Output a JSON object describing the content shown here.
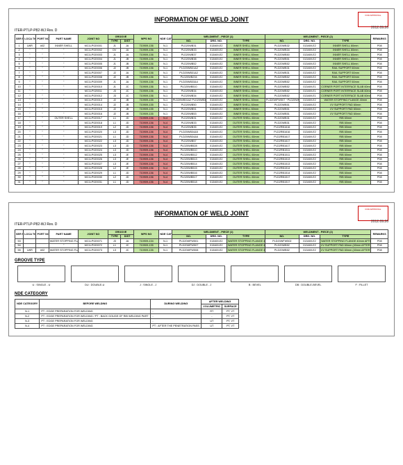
{
  "document": {
    "id": "ITER-PTLP-P82-WJ Rev. D",
    "title": "INFORMATION OF WELD JOINT",
    "date": "2012.09.26",
    "approval": "FOR APPROVAL"
  },
  "colors": {
    "green": "#c5e7a5",
    "red": "#e68f8f",
    "border": "#444"
  },
  "header": {
    "ser": "SER NO.",
    "loca": "LOCA TION",
    "port": "PORT NO.",
    "partname": "PART NAME",
    "jointno": "JOINT NO",
    "groove": "GROOVE",
    "grooveType": "TYPE",
    "grooveDist": "DIST",
    "wps": "WPS NO",
    "nde": "NDE CAT",
    "piece1": "WELDMENT - PIECE (1)",
    "piece2": "WELDMENT - PIECE (2)",
    "type": "TYPE",
    "no": "NO.",
    "drg": "DRG. NO.",
    "remarks": "REMARKS"
  },
  "rows1": [
    {
      "ser": "1",
      "loca": "LWR",
      "port": "#02",
      "part": "INNER SHELL",
      "joint": "MC1LP020001",
      "gt": "J1",
      "gd": "JA",
      "wps": "710909-136",
      "nde": "N-1",
      "p1t": "PLD20WB31",
      "p1n": "013469-E2",
      "p1d": "INNER SHELL 60mm",
      "p2t": "PLD20WB32",
      "p2n": "013469-E2",
      "p2d": "INNER SHELL 60mm",
      "rem": "P08"
    },
    {
      "ser": "2",
      "loca": "\"",
      "port": "\"",
      "part": "\"",
      "joint": "MC1LP020002",
      "gt": "DV",
      "gd": "JA",
      "wps": "710909-136",
      "nde": "N-1",
      "p1t": "PLD20WB33",
      "p1n": "013469-E2",
      "p1d": "INNER SHELL 60mm",
      "p2t": "PLD20WB34",
      "p2n": "013469-E2",
      "p2d": "INNER SHELL 60mm",
      "rem": "P08"
    },
    {
      "ser": "3",
      "loca": "\"",
      "port": "\"",
      "part": "\"",
      "joint": "MC1LP020003",
      "gt": "J1",
      "gd": "JA",
      "wps": "710909-136",
      "nde": "N-1",
      "p1t": "PLD20WB37",
      "p1n": "013469-E2",
      "p1d": "INNER SHELL 60mm",
      "p2t": "PLD20WB50",
      "p2n": "013469-E2",
      "p2d": "INNER SHELL 60mm",
      "rem": "P08"
    },
    {
      "ser": "4",
      "loca": "\"",
      "port": "\"",
      "part": "\"",
      "joint": "MC1LP020004",
      "gt": "J1",
      "gd": "JB",
      "wps": "710909-136",
      "nde": "N-1",
      "p1t": "PLD20WB38",
      "p1n": "013469-E2",
      "p1d": "INNER SHELL 60mm",
      "p2t": "PLD20WB51",
      "p2n": "013469-E2",
      "p2d": "INNER SHELL 60mm",
      "rem": "P08"
    },
    {
      "ser": "5",
      "loca": "\"",
      "port": "\"",
      "part": "\"",
      "joint": "MC1LP020005",
      "gt": "J1",
      "gd": "JB",
      "wps": "710909-136",
      "nde": "N-1",
      "p1t": "PLD20WB52",
      "p1n": "013469-E2",
      "p1d": "INNER SHELL 60mm",
      "p2t": "PLD20WB52",
      "p2n": "013469-E2",
      "p2d": "INNER SHELL 60mm",
      "rem": "P08"
    },
    {
      "ser": "6",
      "loca": "\"",
      "port": "\"",
      "part": "\"",
      "joint": "MC1LP020006",
      "gt": "J2",
      "gd": "JB",
      "wps": "710909-136",
      "nde": "N-1",
      "p1t": "PLD20WB31&2",
      "p1n": "013469-E2",
      "p1d": "INNER SHELL 60mm",
      "p2t": "PLD20WB31",
      "p2n": "013469-E2",
      "p2d": "RAIL SUPPORT 60mm",
      "rem": "P08"
    },
    {
      "ser": "7",
      "loca": "\"",
      "port": "\"",
      "part": "\"",
      "joint": "MC1LP020007",
      "gt": "J2",
      "gd": "JA",
      "wps": "710909-136",
      "nde": "N-1",
      "p1t": "PLD20WB31&2",
      "p1n": "013469-E2",
      "p1d": "INNER SHELL 60mm",
      "p2t": "PLD20WB31",
      "p2n": "013469-E2",
      "p2d": "RAIL SUPPORT 60mm",
      "rem": "P08"
    },
    {
      "ser": "8",
      "loca": "\"",
      "port": "\"",
      "part": "\"",
      "joint": "MC1LP020008",
      "gt": "J2",
      "gd": "JB",
      "wps": "710909-136",
      "nde": "N-1",
      "p1t": "PLD20WB234",
      "p1n": "013469-E2",
      "p1d": "INNER SHELL 60mm",
      "p2t": "PLD20WB52",
      "p2n": "013469-E2",
      "p2d": "RAIL SUPPORT 60mm",
      "rem": "P08"
    },
    {
      "ser": "9",
      "loca": "\"",
      "port": "\"",
      "part": "\"",
      "joint": "MC1LP020009",
      "gt": "J1",
      "gd": "JA",
      "wps": "710909-136",
      "nde": "N-1",
      "p1t": "PLD20WB33&4",
      "p1n": "013469-E2",
      "p1d": "INNER SHELL 60mm",
      "p2t": "PLD20WB52",
      "p2n": "013469-E2",
      "p2d": "RAIL SUPPORT 60mm",
      "rem": "P08"
    },
    {
      "ser": "10",
      "loca": "\"",
      "port": "\"",
      "part": "\"",
      "joint": "MC1LP020010",
      "gt": "J1",
      "gd": "JC",
      "wps": "710909-136",
      "nde": "N-1",
      "p1t": "PLD20WB510",
      "p1n": "013469-E2",
      "p1d": "INNER SHELL 60mm",
      "p2t": "PLD20WB52",
      "p2n": "013469-E1",
      "p2d": "CORNER PORT INTERFACE SLAB 60mm",
      "rem": "P08"
    },
    {
      "ser": "11",
      "loca": "\"",
      "port": "\"",
      "part": "\"",
      "joint": "MC1LP020011",
      "gt": "J3",
      "gd": "JC",
      "wps": "710909-136",
      "nde": "N-1",
      "p1t": "PLD20WB34",
      "p1n": "013469-E2",
      "p1d": "INNER SHELL 60mm",
      "p2t": "PLD20WB52",
      "p2n": "013469-E1",
      "p2d": "CORNER PORT INTERFACE SLAB 60mm",
      "rem": "P08"
    },
    {
      "ser": "12",
      "loca": "\"",
      "port": "\"",
      "part": "\"",
      "joint": "MC1LP020012",
      "gt": "J3",
      "gd": "JC",
      "wps": "710909-136",
      "nde": "N-1",
      "p1t": "PLD20WB34",
      "p1n": "013469-E2",
      "p1d": "INNER SHELL 60mm",
      "p2t": "PLD20WB52",
      "p2n": "013469-E1",
      "p2d": "CORNER PORT INTERFACE SLAB 60mm",
      "rem": "P08"
    },
    {
      "ser": "13",
      "loca": "\"",
      "port": "\"",
      "part": "\"",
      "joint": "MC1LP020013",
      "gt": "J2",
      "gd": "JB",
      "wps": "710909-135",
      "nde": "N-1",
      "p1t": "PLD20WB31&2 PLD20WB33&4",
      "p1n": "013469-E2",
      "p1d": "INNER SHELL 60mm",
      "p2t": "PLD20WFW507 ~PLD20WFW516",
      "p2n": "013469-E2",
      "p2d": "WATER STOPPING FLANGE 40mm",
      "rem": "P08"
    },
    {
      "ser": "14",
      "loca": "\"",
      "port": "\"",
      "part": "\"",
      "joint": "MC1LP020014",
      "gt": "J2",
      "gd": "JB",
      "wps": "710909-135",
      "nde": "N-1",
      "p1t": "PLD20WB50",
      "p1n": "013469-E2",
      "p1d": "INNER SHELL 60mm",
      "p2t": "PLD20WB51",
      "p2n": "013469-E2",
      "p2d": "I/V SUPPORT PAD 60mm",
      "rem": "P08"
    },
    {
      "ser": "15",
      "loca": "\"",
      "port": "\"",
      "part": "\"",
      "joint": "MC1LP020015",
      "gt": "J2",
      "gd": "JB",
      "wps": "710909-135",
      "nde": "N-1",
      "p1t": "PLD20WB51",
      "p1n": "013469-E2",
      "p1d": "INNER SHELL 60mm",
      "p2t": "PLD20WB51",
      "p2n": "013469-E2",
      "p2d": "I/V SUPPORT PAD 60mm",
      "rem": "P08"
    },
    {
      "ser": "16",
      "loca": "\"",
      "port": "\"",
      "part": "\"",
      "joint": "MC1LP020016",
      "gt": "J2",
      "gd": "JB",
      "wps": "710909-135",
      "nde": "N-1",
      "p1t": "PLD20WB53",
      "p1n": "013469-E2",
      "p1d": "INNER SHELL 60mm",
      "p2t": "PLD20WB51",
      "p2n": "013469-E2",
      "p2d": "I/V SUPPORT PAD 60mm",
      "rem": "P08"
    },
    {
      "ser": "17",
      "loca": "\"",
      "port": "\"",
      "part": "OUTER SHELL",
      "joint": "MC1LP020017",
      "gt": "L1",
      "gd": "JD",
      "wps": "710909-136",
      "nde": "N-4",
      "p1t": "PLD20WB31",
      "p1n": "013469-E2",
      "p1d": "OUTER SHELL 60mm",
      "p2t": "PLD20WB31",
      "p2n": "013469-E2",
      "p2d": "RIB 60mm",
      "rem": "P08"
    },
    {
      "ser": "18",
      "loca": "\"",
      "port": "\"",
      "part": "\"",
      "joint": "MC1LP020018",
      "gt": "L1",
      "gd": "JD",
      "wps": "710909-136",
      "nde": "N-4",
      "p1t": "PLD20WB33",
      "p1n": "013469-E2",
      "p1d": "OUTER SHELL 60mm",
      "p2t": "PLD20WB31",
      "p2n": "013469-E2",
      "p2d": "RIB 60mm",
      "rem": "P08"
    },
    {
      "ser": "19",
      "loca": "\"",
      "port": "\"",
      "part": "\"",
      "joint": "MC1LP020019",
      "gt": "L2",
      "gd": "JD",
      "wps": "710909-136",
      "nde": "N-4",
      "p1t": "PLD20WB35",
      "p1n": "013469-E2",
      "p1d": "OUTER SHELL 60mm",
      "p2t": "PLD2RB1616",
      "p2n": "013469-E2",
      "p2d": "RIB 60mm",
      "rem": "P08"
    },
    {
      "ser": "20",
      "loca": "\"",
      "port": "\"",
      "part": "\"",
      "joint": "MC1LP020020",
      "gt": "L3",
      "gd": "JD",
      "wps": "710909-136",
      "nde": "N-4",
      "p1t": "PLD20WB34&5",
      "p1n": "013469-E2",
      "p1d": "OUTER SHELL 60mm",
      "p2t": "PLD2RB1616",
      "p2n": "013469-E2",
      "p2d": "RIB 60mm",
      "rem": "P08"
    },
    {
      "ser": "21",
      "loca": "\"",
      "port": "\"",
      "part": "\"",
      "joint": "MC1LP020021",
      "gt": "L1",
      "gd": "JD",
      "wps": "710909-136",
      "nde": "N-4",
      "p1t": "PLD20WB34&6",
      "p1n": "013469-E2",
      "p1d": "OUTER SHELL 60mm",
      "p2t": "PLD2RB1617",
      "p2n": "013469-E2",
      "p2d": "RIB 60mm",
      "rem": "P08"
    },
    {
      "ser": "22",
      "loca": "\"",
      "port": "\"",
      "part": "\"",
      "joint": "MC1LP020022",
      "gt": "L3",
      "gd": "JD",
      "wps": "710909-136",
      "nde": "N-4",
      "p1t": "PLD20WB57",
      "p1n": "013469-E2",
      "p1d": "OUTER SHELL 60mm",
      "p2t": "PLD2RB1617",
      "p2n": "013469-E2",
      "p2d": "RIB 60mm",
      "rem": "P08"
    },
    {
      "ser": "23",
      "loca": "\"",
      "port": "\"",
      "part": "\"",
      "joint": "MC1LP020023",
      "gt": "L3",
      "gd": "JD",
      "wps": "710909-136",
      "nde": "N-4",
      "p1t": "PLD20WB528",
      "p1n": "013469-E2",
      "p1d": "OUTER SHELL 60mm",
      "p2t": "PLD2RB1617",
      "p2n": "013469-E2",
      "p2d": "RIB 60mm",
      "rem": "P08"
    },
    {
      "ser": "24",
      "loca": "\"",
      "port": "\"",
      "part": "\"",
      "joint": "MC1LP020024",
      "gt": "L3",
      "gd": "JD",
      "wps": "710909-136",
      "nde": "N-4",
      "p1t": "PLD20WB510",
      "p1n": "013469-E2",
      "p1d": "OUTER SHELL 60mm",
      "p2t": "PLD2RB1511",
      "p2n": "013469-E2",
      "p2d": "RIB 60mm",
      "rem": "P08"
    },
    {
      "ser": "25",
      "loca": "\"",
      "port": "\"",
      "part": "\"",
      "joint": "MC1LP020025",
      "gt": "L3",
      "gd": "JE",
      "wps": "710909-136",
      "nde": "N-4",
      "p1t": "PLD20WB512",
      "p1n": "013469-E2",
      "p1d": "OUTER SHELL 60mm",
      "p2t": "PLD2RB1511",
      "p2n": "013469-E2",
      "p2d": "RIB 60mm",
      "rem": "P08"
    },
    {
      "ser": "26",
      "loca": "\"",
      "port": "\"",
      "part": "\"",
      "joint": "MC1LP020026",
      "gt": "L3",
      "gd": "JE",
      "wps": "710909-136",
      "nde": "N-4",
      "p1t": "PLD20WB513",
      "p1n": "013469-E2",
      "p1d": "OUTER SHELL 60mm",
      "p2t": "PLD2RB1513",
      "p2n": "013469-E2",
      "p2d": "RIB 60mm",
      "rem": "P08"
    },
    {
      "ser": "27",
      "loca": "\"",
      "port": "\"",
      "part": "\"",
      "joint": "MC1LP020027",
      "gt": "L3",
      "gd": "JE",
      "wps": "710909-136",
      "nde": "N-4",
      "p1t": "PLD20WB514",
      "p1n": "013469-E2",
      "p1d": "OUTER SHELL 60mm",
      "p2t": "PLD2RB1513",
      "p2n": "013469-E2",
      "p2d": "RIB 60mm",
      "rem": "P08"
    },
    {
      "ser": "28",
      "loca": "\"",
      "port": "\"",
      "part": "\"",
      "joint": "MC1LP020028",
      "gt": "L2",
      "gd": "JE",
      "wps": "710909-136",
      "nde": "N-4",
      "p1t": "PLD20WB515",
      "p1n": "013469-E2",
      "p1d": "OUTER SHELL 60mm",
      "p2t": "PLD2RB1514",
      "p2n": "013469-E2",
      "p2d": "RIB 60mm",
      "rem": "P08"
    },
    {
      "ser": "29",
      "loca": "\"",
      "port": "\"",
      "part": "\"",
      "joint": "MC1LP020029",
      "gt": "L1",
      "gd": "JD",
      "wps": "710909-136",
      "nde": "N-4",
      "p1t": "PLD20WB516",
      "p1n": "013469-E2",
      "p1d": "OUTER SHELL 60mm",
      "p2t": "PLD2RB1514",
      "p2n": "013469-E2",
      "p2d": "RIB 60mm",
      "rem": "P08"
    },
    {
      "ser": "30",
      "loca": "\"",
      "port": "\"",
      "part": "\"",
      "joint": "MC1LP020030",
      "gt": "L2",
      "gd": "JD",
      "wps": "710909-136",
      "nde": "N-4",
      "p1t": "PLD20WB517",
      "p1n": "013469-E2",
      "p1d": "OUTER SHELL 60mm",
      "p2t": "PLD2RB1517",
      "p2n": "013469-E2",
      "p2d": "RIB 60mm",
      "rem": "P08"
    },
    {
      "ser": "31",
      "loca": "\"",
      "port": "\"",
      "part": "\"",
      "joint": "MC1LP020031",
      "gt": "L1",
      "gd": "JD",
      "wps": "710909-136",
      "nde": "N-4",
      "p1t": "PLD20WB518",
      "p1n": "013469-E2",
      "p1d": "OUTER SHELL 60mm",
      "p2t": "PLD2RB1517",
      "p2n": "013469-E2",
      "p2d": "RIB 60mm",
      "rem": "P08"
    }
  ],
  "rows2": [
    {
      "ser": "53",
      "loca": "",
      "port": "",
      "part": "WATER STOPPING FLANGE",
      "joint": "MC1LP020071",
      "gt": "J3",
      "gd": "JA",
      "wps": "710909-134",
      "nde": "N-1",
      "p1t": "PLD20WFW501",
      "p1n": "013469-E2",
      "p1d": "WATER STOPPING FLANGE 40mm AFTER M/C",
      "p2t": "PLD20WFW502",
      "p2n": "013469-E2",
      "p2d": "WATER STOPPING FLANGE 40mm AFTER M/C",
      "rem": "P08"
    },
    {
      "ser": "54",
      "loca": "",
      "port": "",
      "part": "\"",
      "joint": "MC1LP020072",
      "gt": "L1",
      "gd": "JC",
      "wps": "710909-135",
      "nde": "N-1",
      "p1t": "PLD20WFW507",
      "p1n": "013469-E2",
      "p1d": "WATER STOPPING FLANGE 40mm AFTER M/C",
      "p2t": "PLD20WB52",
      "p2n": "013469-E2",
      "p2d": "I/V SUPPORT PAD 60mm (40mm AFTER M/C)",
      "rem": "P08"
    },
    {
      "ser": "55",
      "loca": "LWR",
      "port": "#02",
      "part": "WATER STOPPING FLANGE",
      "joint": "MC1LP020073",
      "gt": "L3",
      "gd": "JC",
      "wps": "710909-135",
      "nde": "N-1",
      "p1t": "PLD20WFW508",
      "p1n": "013469-E2",
      "p1d": "WATER STOPPING FLANGE 40mm AFTER M/C",
      "p2t": "PLD20WB52",
      "p2n": "013469-E2",
      "p2d": "I/V SUPPORT PAD 60mm (40mm AFTER M/C)",
      "rem": "P08"
    }
  ],
  "groove": {
    "heading": "GROOVE TYPE",
    "items": [
      {
        "code": "U",
        "label": "U : SINGLE - U"
      },
      {
        "code": "DU",
        "label": "DU : DOUBLE-U"
      },
      {
        "code": "J",
        "label": "J : SINGLE - J"
      },
      {
        "code": "DJ",
        "label": "DJ : DOUBLE - J"
      },
      {
        "code": "B",
        "label": "B : BEVEL"
      },
      {
        "code": "DB",
        "label": "DB : DOUBLE-BEVEL"
      },
      {
        "code": "F",
        "label": "F : FILLET"
      }
    ]
  },
  "nde": {
    "heading": "NDE CATEGORY",
    "hdr": {
      "cat": "NDE CATEGORY",
      "before": "BEFORE WELDING",
      "during": "DURING WELDING",
      "after": "AFTER WELDING",
      "vol": "VOLUMETRIC",
      "surf": "SURFACE"
    },
    "rows": [
      {
        "cat": "N-1",
        "before": "PT : EDGE PREPARATION FOR WELDING",
        "during": "-",
        "vol": "RT",
        "surf": "PT, VT"
      },
      {
        "cat": "N-2",
        "before": "PT : EDGE PREPARATION FOR WELDING / PT : BACK GOUGE OF RIB WELDING PART",
        "during": "-",
        "vol": "-",
        "surf": "PT, VT"
      },
      {
        "cat": "N-3",
        "before": "PT : EDGE PREPARATION FOR WELDING",
        "during": "-",
        "vol": "UT",
        "surf": "PT, VT"
      },
      {
        "cat": "N-4",
        "before": "PT : EDGE PREPARATION FOR WELDING",
        "during": "PT : AFTER THE PENETRATION PASS",
        "vol": "UT",
        "surf": "PT, VT"
      }
    ]
  }
}
